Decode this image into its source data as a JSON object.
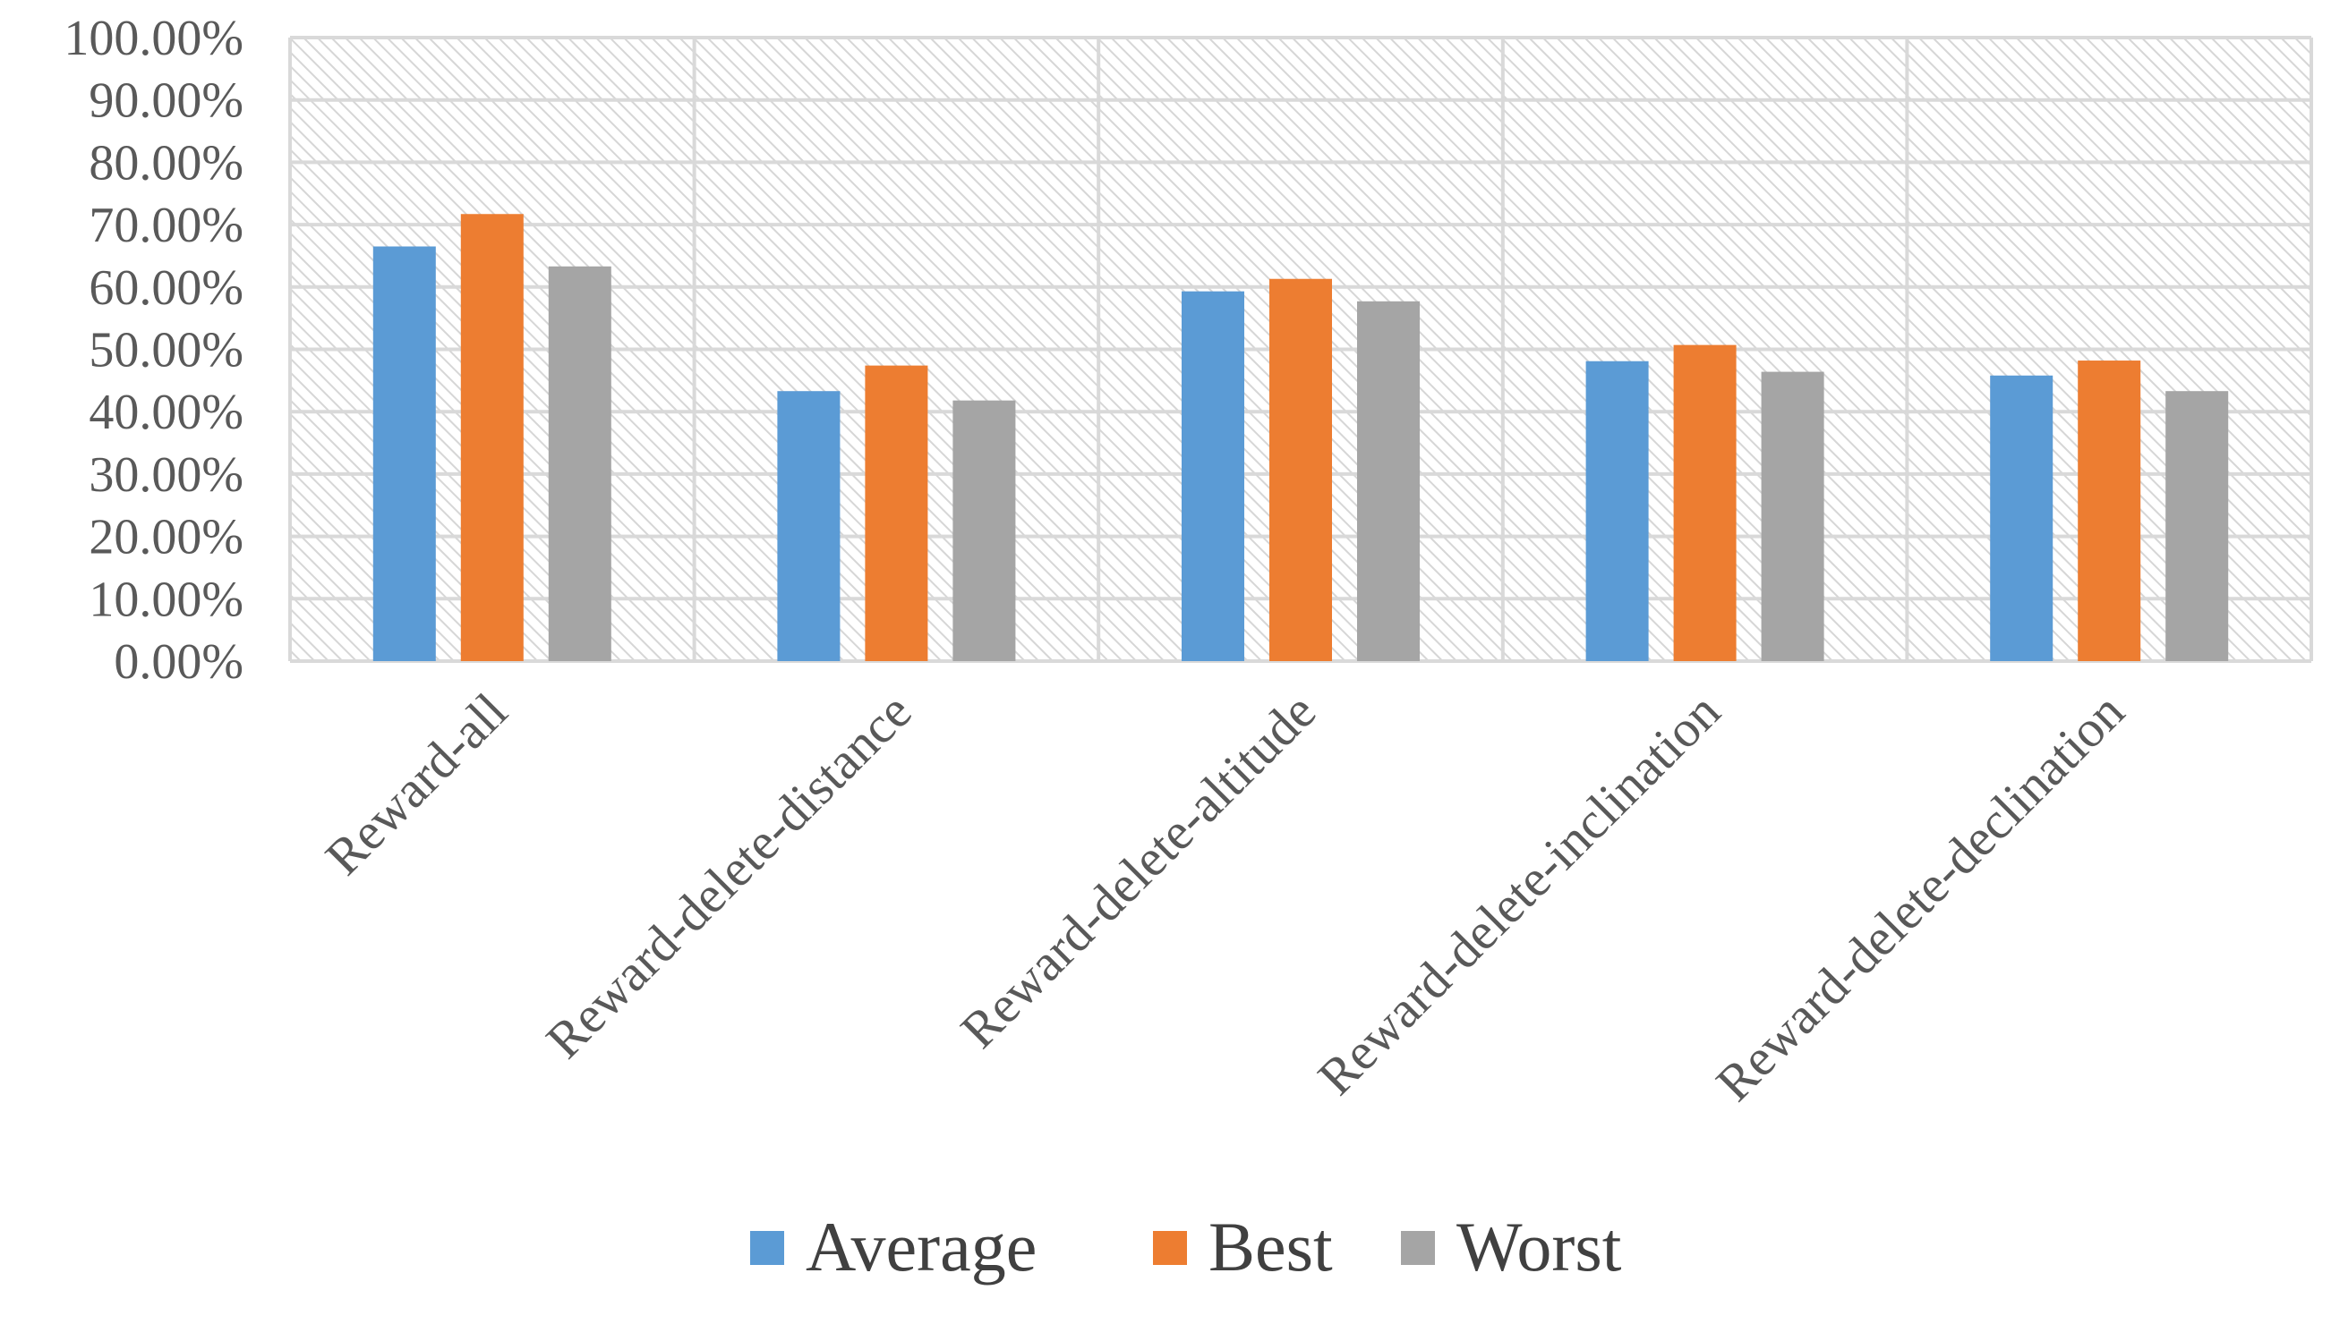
{
  "chart_data": {
    "type": "bar",
    "categories": [
      "Reward-all",
      "Reward-delete-distance",
      "Reward-delete-altitude",
      "Reward-delete-inclination",
      "Reward-delete-declination"
    ],
    "series": [
      {
        "name": "Average",
        "color": "#5B9BD5",
        "values": [
          0.665,
          0.433,
          0.593,
          0.481,
          0.458
        ]
      },
      {
        "name": "Best",
        "color": "#ED7D31",
        "values": [
          0.717,
          0.474,
          0.613,
          0.507,
          0.482
        ]
      },
      {
        "name": "Worst",
        "color": "#A5A5A5",
        "values": [
          0.633,
          0.418,
          0.577,
          0.464,
          0.433
        ]
      }
    ],
    "y_ticks": [
      "0.00%",
      "10.00%",
      "20.00%",
      "30.00%",
      "40.00%",
      "50.00%",
      "60.00%",
      "70.00%",
      "80.00%",
      "90.00%",
      "100.00%"
    ],
    "ylim": [
      0,
      1
    ],
    "title": "",
    "xlabel": "",
    "ylabel": "",
    "grid": true,
    "legend_position": "bottom"
  }
}
